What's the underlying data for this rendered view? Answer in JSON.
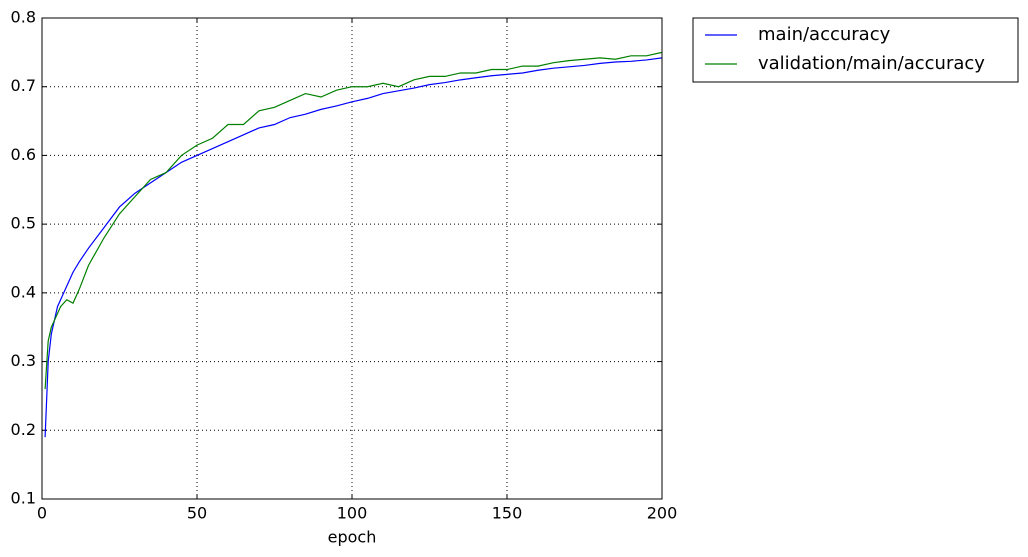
{
  "chart_data": {
    "type": "line",
    "xlabel": "epoch",
    "x": [
      1,
      2,
      3,
      4,
      5,
      6,
      8,
      10,
      12,
      15,
      20,
      25,
      30,
      35,
      40,
      45,
      50,
      55,
      60,
      65,
      70,
      75,
      80,
      85,
      90,
      95,
      100,
      105,
      110,
      115,
      120,
      125,
      130,
      135,
      140,
      145,
      150,
      155,
      160,
      165,
      170,
      175,
      180,
      185,
      190,
      195,
      200
    ],
    "series": [
      {
        "name": "main/accuracy",
        "color": "#0000ff",
        "values": [
          0.19,
          0.3,
          0.34,
          0.36,
          0.38,
          0.39,
          0.41,
          0.43,
          0.445,
          0.465,
          0.495,
          0.525,
          0.545,
          0.56,
          0.575,
          0.59,
          0.6,
          0.61,
          0.62,
          0.63,
          0.64,
          0.645,
          0.655,
          0.66,
          0.667,
          0.672,
          0.678,
          0.683,
          0.69,
          0.694,
          0.698,
          0.703,
          0.706,
          0.71,
          0.713,
          0.716,
          0.718,
          0.72,
          0.724,
          0.727,
          0.729,
          0.731,
          0.734,
          0.736,
          0.737,
          0.739,
          0.742
        ]
      },
      {
        "name": "validation/main/accuracy",
        "color": "#008000",
        "values": [
          0.26,
          0.33,
          0.35,
          0.36,
          0.37,
          0.38,
          0.39,
          0.385,
          0.405,
          0.44,
          0.48,
          0.515,
          0.54,
          0.565,
          0.575,
          0.6,
          0.615,
          0.625,
          0.645,
          0.645,
          0.665,
          0.67,
          0.68,
          0.69,
          0.685,
          0.695,
          0.7,
          0.7,
          0.705,
          0.7,
          0.71,
          0.715,
          0.715,
          0.72,
          0.72,
          0.725,
          0.725,
          0.73,
          0.73,
          0.735,
          0.738,
          0.74,
          0.742,
          0.74,
          0.745,
          0.745,
          0.75
        ]
      }
    ],
    "xlim": [
      0,
      200
    ],
    "xticks": [
      0,
      50,
      100,
      150,
      200
    ],
    "ylim": [
      0.1,
      0.8
    ],
    "yticks": [
      0.1,
      0.2,
      0.3,
      0.4,
      0.5,
      0.6,
      0.7,
      0.8
    ],
    "grid": true,
    "legend": "outside upper right"
  }
}
